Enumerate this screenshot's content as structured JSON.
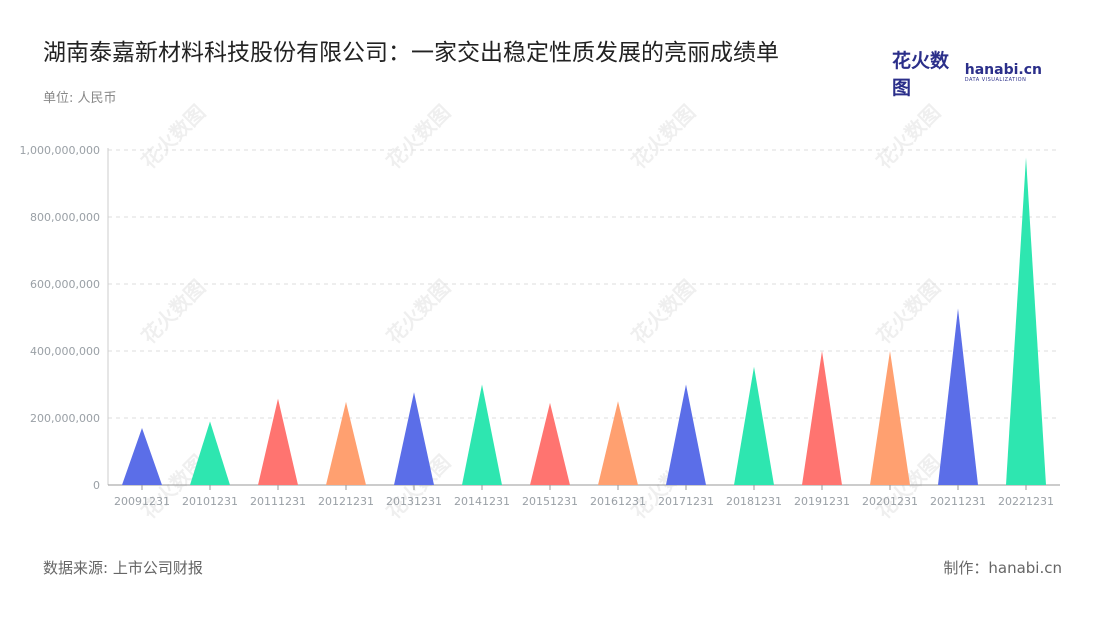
{
  "header": {
    "title": "湖南泰嘉新材料科技股份有限公司：一家交出稳定性质发展的亮丽成绩单",
    "unit": "单位: 人民币"
  },
  "logo": {
    "cn": "花火数图",
    "en": "hanabi.cn",
    "sub": "DATA VISUALIZATION"
  },
  "footer": {
    "source": "数据来源: 上市公司财报",
    "credit": "制作：hanabi.cn"
  },
  "watermark": {
    "text": "花火数图"
  },
  "chart_data": {
    "type": "bar",
    "mark_shape": "triangle",
    "categories": [
      "20091231",
      "20101231",
      "20111231",
      "20121231",
      "20131231",
      "20141231",
      "20151231",
      "20161231",
      "20171231",
      "20181231",
      "20191231",
      "20201231",
      "20211231",
      "20221231"
    ],
    "values": [
      170000000,
      190000000,
      258000000,
      248000000,
      277000000,
      300000000,
      245000000,
      250000000,
      300000000,
      353000000,
      400000000,
      400000000,
      527000000,
      978000000
    ],
    "colors": [
      "#5b6ee8",
      "#2ee6b0",
      "#ff7470",
      "#ffa070"
    ],
    "ylim": [
      0,
      1000000000
    ],
    "yticks": [
      0,
      200000000,
      400000000,
      600000000,
      800000000,
      1000000000
    ],
    "ytick_labels": [
      "0",
      "200,000,000",
      "400,000,000",
      "600,000,000",
      "800,000,000",
      "1,000,000,000"
    ],
    "grid": true,
    "legend": "none"
  }
}
